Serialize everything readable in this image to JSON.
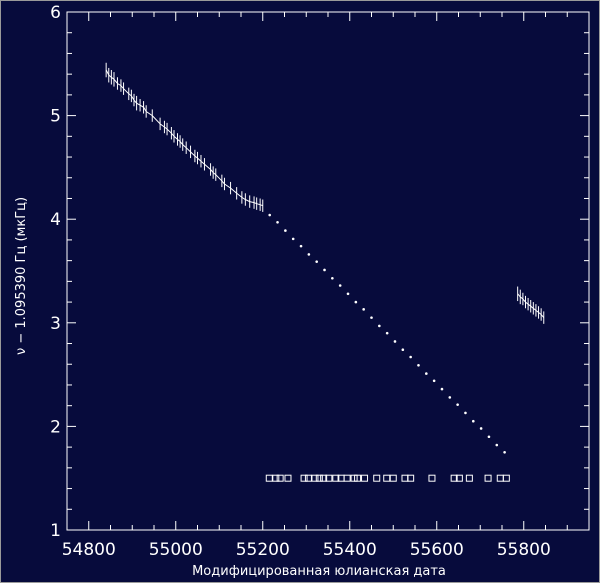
{
  "chart_data": {
    "type": "scatter",
    "xlabel": "Модифицированная юлианская дата",
    "ylabel": "ν − 1.095390 Гц (мкГц)",
    "xlim": [
      54750,
      55950
    ],
    "ylim": [
      1,
      6
    ],
    "x_ticks": [
      54800,
      55000,
      55200,
      55400,
      55600,
      55800
    ],
    "y_ticks": [
      1,
      2,
      3,
      4,
      5,
      6
    ],
    "grid": false,
    "colors": {
      "background": "#070b3c",
      "foreground": "#ffffff"
    },
    "series": [
      {
        "kind": "timing_fit_1",
        "marker": "line-with-error-bars",
        "x": [
          54840,
          54846,
          54852,
          54858,
          54866,
          54874,
          54880,
          54892,
          54898,
          54904,
          54910,
          54918,
          54926,
          54932,
          54946,
          54964,
          54974,
          54980,
          54990,
          54996,
          55004,
          55010,
          55016,
          55024,
          55034,
          55044,
          55050,
          55058,
          55066,
          55080,
          55086,
          55092,
          55106,
          55112,
          55126,
          55140,
          55152,
          55160,
          55170,
          55180,
          55186,
          55194,
          55200
        ],
        "y": [
          5.44,
          5.39,
          5.37,
          5.35,
          5.31,
          5.29,
          5.26,
          5.21,
          5.19,
          5.15,
          5.12,
          5.1,
          5.08,
          5.04,
          5.0,
          4.92,
          4.89,
          4.87,
          4.83,
          4.8,
          4.77,
          4.75,
          4.72,
          4.69,
          4.65,
          4.61,
          4.59,
          4.56,
          4.53,
          4.48,
          4.45,
          4.43,
          4.37,
          4.34,
          4.3,
          4.25,
          4.21,
          4.19,
          4.17,
          4.16,
          4.15,
          4.14,
          4.13
        ],
        "err": [
          0.07,
          0.07,
          0.07,
          0.07,
          0.06,
          0.06,
          0.06,
          0.06,
          0.06,
          0.06,
          0.07,
          0.06,
          0.06,
          0.06,
          0.06,
          0.06,
          0.06,
          0.06,
          0.06,
          0.06,
          0.06,
          0.06,
          0.06,
          0.06,
          0.06,
          0.06,
          0.06,
          0.06,
          0.06,
          0.06,
          0.06,
          0.06,
          0.06,
          0.06,
          0.06,
          0.06,
          0.06,
          0.06,
          0.06,
          0.06,
          0.06,
          0.06,
          0.06
        ]
      },
      {
        "kind": "extrapolation",
        "marker": "dots",
        "x": [
          55216,
          55234,
          55252,
          55270,
          55288,
          55306,
          55324,
          55342,
          55360,
          55378,
          55396,
          55414,
          55432,
          55450,
          55468,
          55486,
          55504,
          55522,
          55540,
          55558,
          55576,
          55594,
          55612,
          55630,
          55648,
          55666,
          55684,
          55702,
          55720,
          55738,
          55756
        ],
        "y": [
          4.04,
          3.97,
          3.89,
          3.81,
          3.74,
          3.66,
          3.59,
          3.51,
          3.43,
          3.36,
          3.28,
          3.2,
          3.13,
          3.05,
          2.97,
          2.9,
          2.82,
          2.74,
          2.67,
          2.59,
          2.51,
          2.44,
          2.36,
          2.28,
          2.21,
          2.13,
          2.05,
          1.98,
          1.9,
          1.82,
          1.75
        ]
      },
      {
        "kind": "timing_fit_2",
        "marker": "line-with-error-bars",
        "x": [
          55786,
          55792,
          55798,
          55804,
          55810,
          55816,
          55822,
          55828,
          55834,
          55840,
          55846
        ],
        "y": [
          3.28,
          3.25,
          3.23,
          3.2,
          3.18,
          3.16,
          3.14,
          3.12,
          3.1,
          3.08,
          3.05
        ],
        "err": [
          0.07,
          0.07,
          0.06,
          0.06,
          0.06,
          0.06,
          0.06,
          0.06,
          0.06,
          0.06,
          0.06
        ]
      },
      {
        "kind": "observation_epochs",
        "marker": "open-square",
        "y_level": 1.5,
        "x": [
          55215,
          55230,
          55240,
          55258,
          55295,
          55305,
          55320,
          55330,
          55340,
          55352,
          55368,
          55380,
          55394,
          55410,
          55418,
          55434,
          55462,
          55485,
          55500,
          55527,
          55540,
          55589,
          55640,
          55652,
          55675,
          55718,
          55746,
          55760
        ]
      }
    ]
  }
}
